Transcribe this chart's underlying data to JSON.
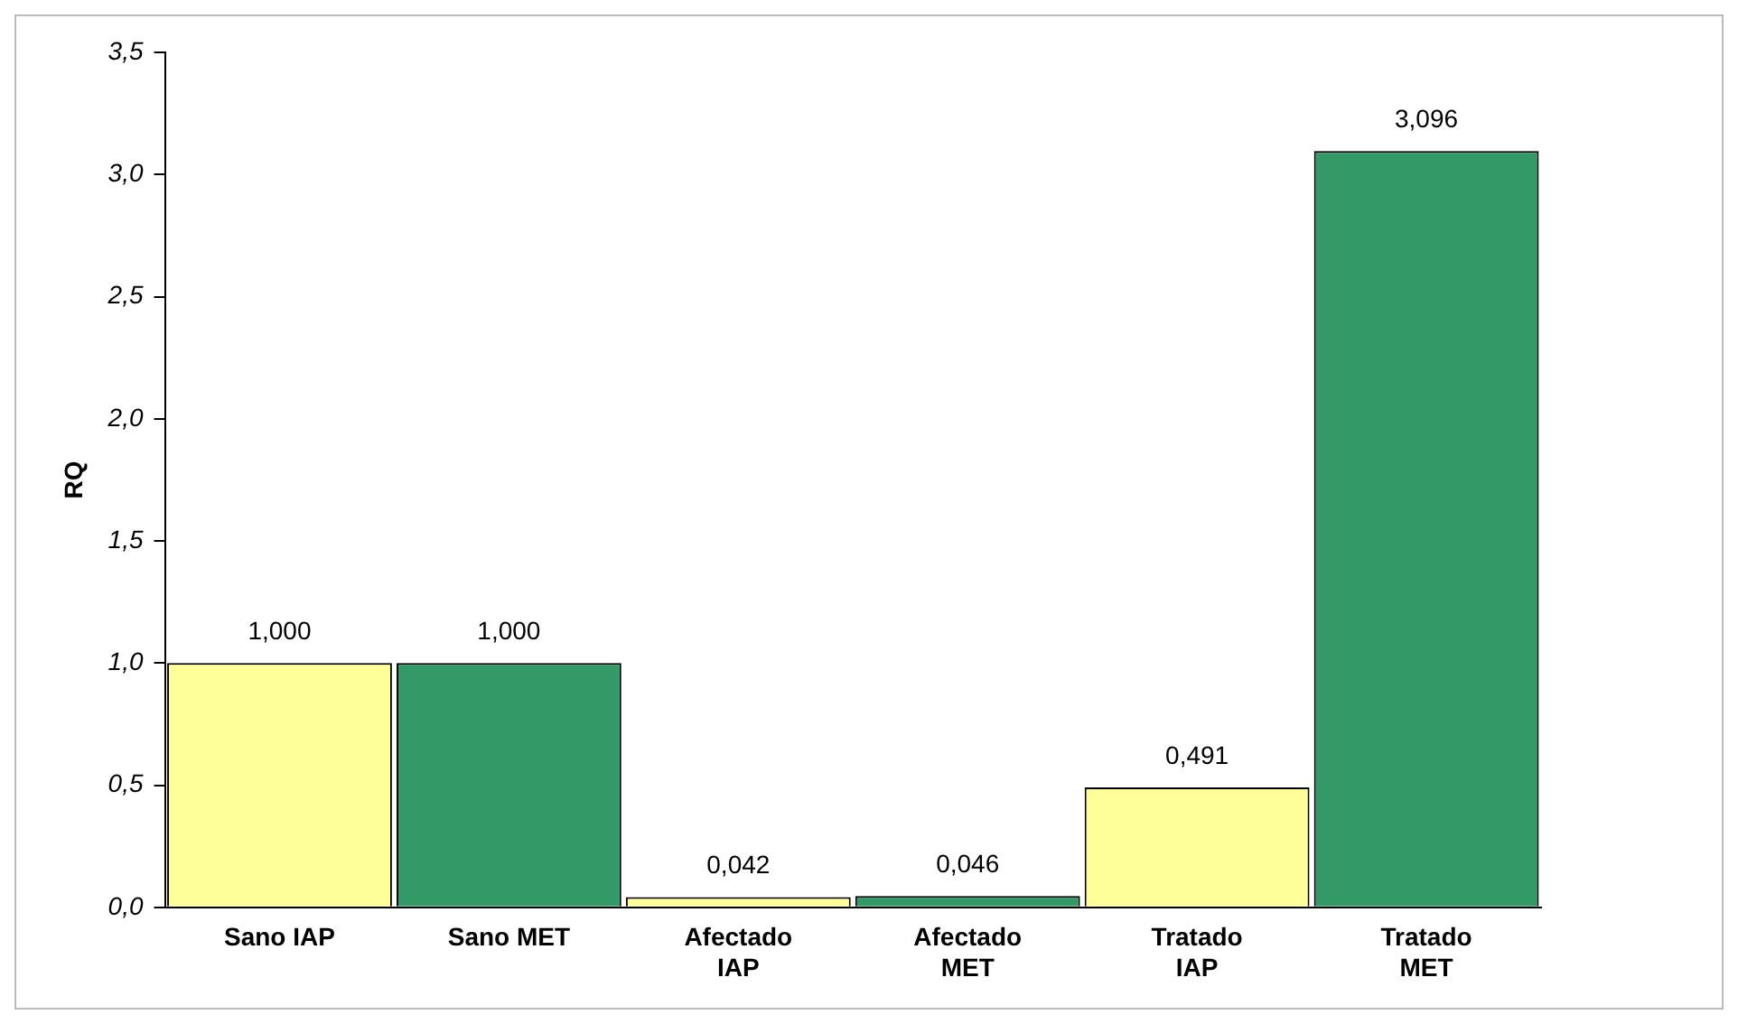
{
  "chart_data": {
    "type": "bar",
    "ylabel": "RQ",
    "categories": [
      "Sano IAP",
      "Sano MET",
      "Afectado IAP",
      "Afectado MET",
      "Tratado IAP",
      "Tratado MET"
    ],
    "values": [
      1.0,
      1.0,
      0.042,
      0.046,
      0.491,
      3.096
    ],
    "colors": [
      "#ffff99",
      "#339966",
      "#ffff99",
      "#339966",
      "#ffff99",
      "#339966"
    ],
    "value_labels": [
      "1,000",
      "1,000",
      "0,042",
      "0,046",
      "0,491",
      "3,096"
    ],
    "ylim": [
      0,
      3.5
    ],
    "yticks": [
      {
        "value": 0,
        "label": "0,0"
      },
      {
        "value": 0.5,
        "label": "0,5"
      },
      {
        "value": 1,
        "label": "1,0"
      },
      {
        "value": 1.5,
        "label": "1,5"
      },
      {
        "value": 2,
        "label": "2,0"
      },
      {
        "value": 2.5,
        "label": "2,5"
      },
      {
        "value": 3,
        "label": "3,0"
      },
      {
        "value": 3.5,
        "label": "3,5"
      }
    ],
    "grid": false,
    "legend": false
  }
}
